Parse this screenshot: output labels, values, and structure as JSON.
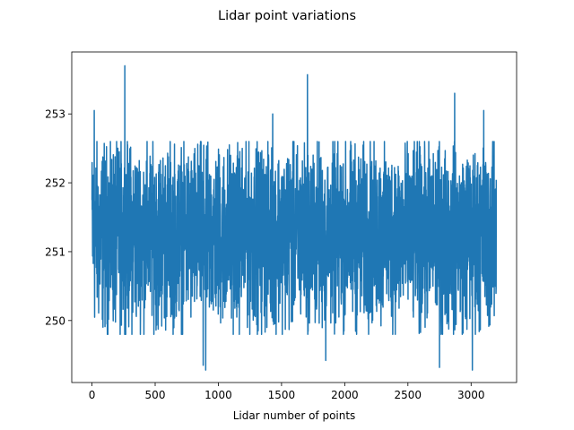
{
  "chart_data": {
    "type": "line",
    "title": "Lidar point variations",
    "xlabel": "Lidar number of points",
    "ylabel": "",
    "xlim": [
      -160,
      3360
    ],
    "ylim": [
      249.1,
      253.9
    ],
    "grid": false,
    "legend": "none",
    "x_ticks": [
      0,
      500,
      1000,
      1500,
      2000,
      2500,
      3000
    ],
    "y_ticks": [
      250,
      251,
      252,
      253
    ],
    "series": [
      {
        "color": "#1f77b4",
        "n_points": 3200,
        "mean": 251.3,
        "typical_min": 249.8,
        "typical_max": 252.6,
        "peaks": [
          {
            "x": 0,
            "y": 251.75
          },
          {
            "x": 18,
            "y": 253.05
          },
          {
            "x": 260,
            "y": 253.7
          },
          {
            "x": 880,
            "y": 249.35
          },
          {
            "x": 900,
            "y": 249.28
          },
          {
            "x": 1430,
            "y": 253.0
          },
          {
            "x": 1705,
            "y": 253.57
          },
          {
            "x": 1850,
            "y": 249.42
          },
          {
            "x": 2750,
            "y": 249.32
          },
          {
            "x": 2870,
            "y": 253.3
          },
          {
            "x": 3010,
            "y": 249.28
          },
          {
            "x": 3100,
            "y": 253.05
          },
          {
            "x": 3190,
            "y": 251.65
          }
        ]
      }
    ]
  }
}
